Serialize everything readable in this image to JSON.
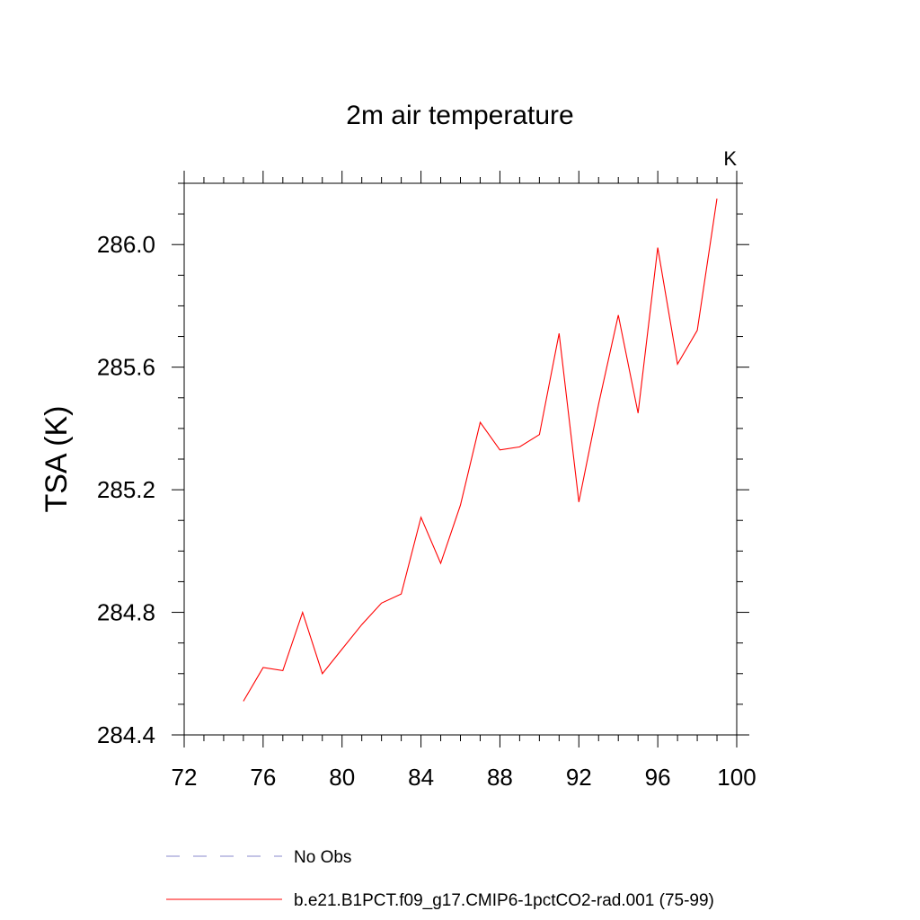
{
  "chart_data": {
    "type": "line",
    "title": "2m air temperature",
    "units_label": "K",
    "xlabel": "",
    "ylabel": "TSA  (K)",
    "xlim": [
      72,
      100
    ],
    "ylim": [
      284.4,
      286.2
    ],
    "x_ticks": [
      72,
      76,
      80,
      84,
      88,
      92,
      96,
      100
    ],
    "y_ticks": [
      "284.4",
      "284.8",
      "285.2",
      "285.6",
      "286.0"
    ],
    "grid": false,
    "legend_position": "bottom-left",
    "series": [
      {
        "name": "b.e21.B1PCT.f09_g17.CMIP6-1pctCO2-rad.001 (75-99)",
        "color": "#ff0000",
        "style": "solid",
        "x": [
          75,
          76,
          77,
          78,
          79,
          80,
          81,
          82,
          83,
          84,
          85,
          86,
          87,
          88,
          89,
          90,
          91,
          92,
          93,
          94,
          95,
          96,
          97,
          98,
          99
        ],
        "y": [
          284.51,
          284.62,
          284.61,
          284.8,
          284.6,
          284.68,
          284.76,
          284.83,
          284.86,
          285.11,
          284.96,
          285.15,
          285.42,
          285.33,
          285.34,
          285.38,
          285.71,
          285.16,
          285.48,
          285.77,
          285.45,
          285.99,
          285.61,
          285.72,
          286.15
        ]
      }
    ],
    "legend": [
      {
        "label": "No Obs",
        "color": "#8888cc",
        "style": "dashed"
      },
      {
        "label": "b.e21.B1PCT.f09_g17.CMIP6-1pctCO2-rad.001 (75-99)",
        "color": "#ff0000",
        "style": "solid"
      }
    ]
  }
}
